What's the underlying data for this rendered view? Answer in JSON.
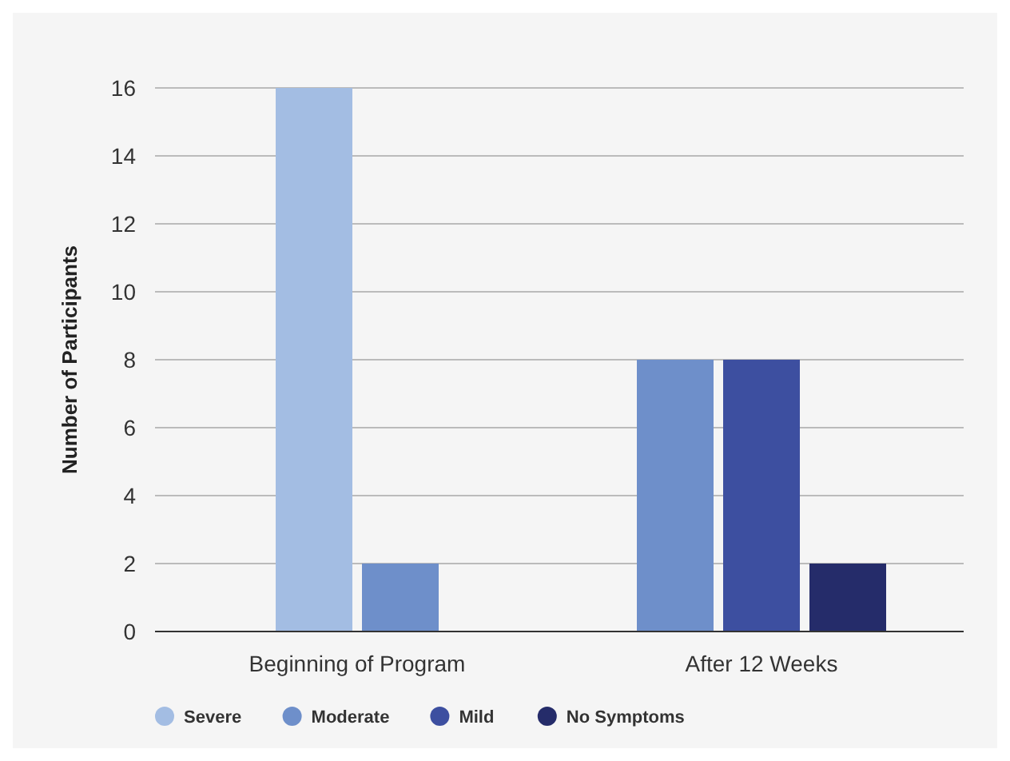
{
  "chart_data": {
    "type": "bar",
    "ylabel": "Number of Participants",
    "categories": [
      "Beginning of Program",
      "After 12 Weeks"
    ],
    "series": [
      {
        "name": "Severe",
        "color": "#a3bde3",
        "values": [
          16,
          null
        ]
      },
      {
        "name": "Moderate",
        "color": "#6e8fca",
        "values": [
          2,
          8
        ]
      },
      {
        "name": "Mild",
        "color": "#3d4fa0",
        "values": [
          null,
          8
        ]
      },
      {
        "name": "No Symptoms",
        "color": "#252c6a",
        "values": [
          null,
          2
        ]
      }
    ],
    "ylim": [
      0,
      16
    ],
    "yticks": [
      0,
      2,
      4,
      6,
      8,
      10,
      12,
      14,
      16
    ],
    "grid": "y",
    "legend": "bottom left"
  }
}
